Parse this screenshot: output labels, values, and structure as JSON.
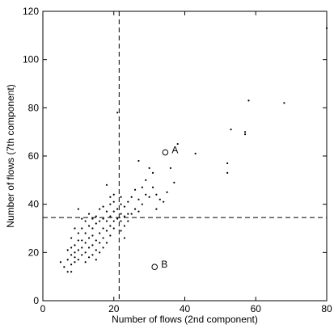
{
  "chart_data": {
    "type": "scatter",
    "xlabel": "Number of flows (2nd component)",
    "ylabel": "Number of flows (7th component)",
    "xlim": [
      0,
      80
    ],
    "ylim": [
      0,
      120
    ],
    "xticks": [
      "0",
      "20",
      "40",
      "60",
      "80"
    ],
    "yticks": [
      "0",
      "20",
      "40",
      "60",
      "80",
      "100",
      "120"
    ],
    "grid": false,
    "legend": "none",
    "reference_lines": [
      {
        "orientation": "vertical",
        "x": 21.5,
        "style": "dashed"
      },
      {
        "orientation": "horizontal",
        "y": 34.5,
        "style": "dashed"
      }
    ],
    "highlighted_points": [
      {
        "label": "A",
        "x": 34.5,
        "y": 61.5
      },
      {
        "label": "B",
        "x": 31.5,
        "y": 14.0
      }
    ],
    "series": [
      {
        "marker": "dot",
        "points": [
          [
            5,
            16
          ],
          [
            6,
            14
          ],
          [
            7,
            12
          ],
          [
            7,
            17
          ],
          [
            7,
            21
          ],
          [
            8,
            12
          ],
          [
            8,
            15
          ],
          [
            8,
            19
          ],
          [
            8,
            22
          ],
          [
            8,
            26
          ],
          [
            9,
            16
          ],
          [
            9,
            18
          ],
          [
            9,
            20
          ],
          [
            9,
            23
          ],
          [
            9,
            30
          ],
          [
            10,
            17
          ],
          [
            10,
            21
          ],
          [
            10,
            25
          ],
          [
            10,
            28
          ],
          [
            10,
            38
          ],
          [
            11,
            19
          ],
          [
            11,
            22
          ],
          [
            11,
            25
          ],
          [
            11,
            30
          ],
          [
            11,
            34
          ],
          [
            12,
            16
          ],
          [
            12,
            20
          ],
          [
            12,
            24
          ],
          [
            12,
            28
          ],
          [
            12,
            33
          ],
          [
            13,
            18
          ],
          [
            13,
            22
          ],
          [
            13,
            26
          ],
          [
            13,
            31
          ],
          [
            13,
            36
          ],
          [
            14,
            19
          ],
          [
            14,
            23
          ],
          [
            14,
            27
          ],
          [
            14,
            30
          ],
          [
            14,
            34
          ],
          [
            15,
            17
          ],
          [
            15,
            21
          ],
          [
            15,
            25
          ],
          [
            15,
            32
          ],
          [
            15,
            35
          ],
          [
            16,
            20
          ],
          [
            16,
            24
          ],
          [
            16,
            28
          ],
          [
            16,
            33
          ],
          [
            16,
            38
          ],
          [
            17,
            22
          ],
          [
            17,
            26
          ],
          [
            17,
            30
          ],
          [
            17,
            34
          ],
          [
            17,
            39
          ],
          [
            18,
            24
          ],
          [
            18,
            29
          ],
          [
            18,
            33
          ],
          [
            18,
            37
          ],
          [
            18,
            48
          ],
          [
            19,
            27
          ],
          [
            19,
            31
          ],
          [
            19,
            35
          ],
          [
            19,
            40
          ],
          [
            19,
            43
          ],
          [
            20,
            30
          ],
          [
            20,
            33
          ],
          [
            20,
            37
          ],
          [
            20,
            41
          ],
          [
            20,
            44
          ],
          [
            21,
            78
          ],
          [
            21,
            34
          ],
          [
            21,
            38
          ],
          [
            22,
            29
          ],
          [
            22,
            33
          ],
          [
            22,
            36
          ],
          [
            22,
            40
          ],
          [
            22,
            43
          ],
          [
            23,
            26
          ],
          [
            23,
            31
          ],
          [
            23,
            35
          ],
          [
            23,
            39
          ],
          [
            24,
            33
          ],
          [
            24,
            36
          ],
          [
            24,
            41
          ],
          [
            25,
            36
          ],
          [
            25,
            43
          ],
          [
            26,
            38
          ],
          [
            26,
            46
          ],
          [
            27,
            37
          ],
          [
            27,
            42
          ],
          [
            27,
            58
          ],
          [
            28,
            40
          ],
          [
            28,
            47
          ],
          [
            29,
            44
          ],
          [
            29,
            50
          ],
          [
            30,
            43
          ],
          [
            30,
            55
          ],
          [
            31,
            47
          ],
          [
            31,
            53
          ],
          [
            32,
            38
          ],
          [
            32,
            44
          ],
          [
            33,
            42
          ],
          [
            34,
            41
          ],
          [
            35,
            45
          ],
          [
            36,
            55
          ],
          [
            37,
            49
          ],
          [
            38,
            65
          ],
          [
            43,
            61
          ],
          [
            52,
            53
          ],
          [
            52,
            57
          ],
          [
            53,
            71
          ],
          [
            57,
            70
          ],
          [
            57,
            69
          ],
          [
            58,
            83
          ],
          [
            68,
            82
          ],
          [
            80,
            113
          ]
        ]
      }
    ]
  }
}
